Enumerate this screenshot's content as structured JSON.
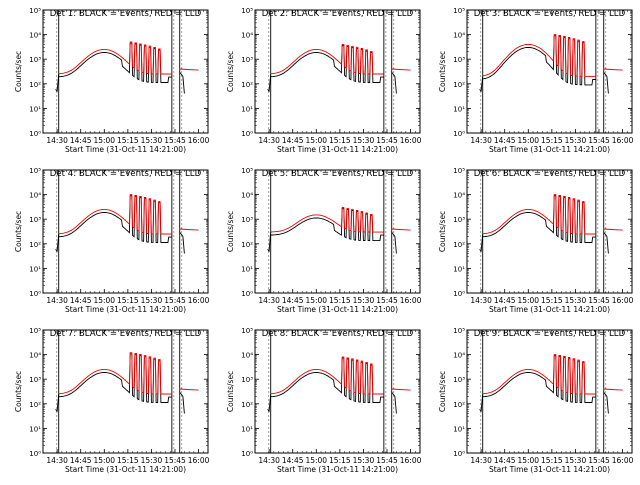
{
  "colors": {
    "events": "#000000",
    "lld": "#ff0000",
    "axes": "#000000"
  },
  "chart_data": [
    {
      "type": "line",
      "title": "Det 1: BLACK = Events, RED = LLD",
      "xlabel": "Start Time (31-Oct-11 14:21:00)",
      "ylabel": "Counts/sec",
      "x_ticks": [
        "14:30",
        "14:45",
        "15:00",
        "15:15",
        "15:30",
        "15:45",
        "16:00"
      ],
      "x_tick_minutes": [
        9,
        24,
        39,
        54,
        69,
        84,
        99
      ],
      "xlim_minutes": [
        0,
        105
      ],
      "y_scale": "log",
      "ylim": [
        1,
        100000
      ],
      "y_ticks": [
        "10⁰",
        "10¹",
        "10²",
        "10³",
        "10⁴",
        "10⁵"
      ],
      "vertical_lines_minutes": [
        10,
        82,
        87
      ],
      "legend": [
        "Events",
        "LLD"
      ]
    },
    {
      "type": "line",
      "title": "Det 2: BLACK = Events, RED = LLD",
      "xlabel": "Start Time (31-Oct-11 14:21:00)",
      "ylabel": "Counts/sec",
      "x_ticks": [
        "14:30",
        "14:45",
        "15:00",
        "15:15",
        "15:30",
        "15:45",
        "16:00"
      ],
      "x_tick_minutes": [
        9,
        24,
        39,
        54,
        69,
        84,
        99
      ],
      "xlim_minutes": [
        0,
        105
      ],
      "y_scale": "log",
      "ylim": [
        1,
        100000
      ],
      "y_ticks": [
        "10⁰",
        "10¹",
        "10²",
        "10³",
        "10⁴",
        "10⁵"
      ],
      "vertical_lines_minutes": [
        10,
        82,
        87
      ],
      "legend": [
        "Events",
        "LLD"
      ]
    },
    {
      "type": "line",
      "title": "Det 3: BLACK = Events, RED = LLD",
      "xlabel": "Start Time (31-Oct-11 14:21:00)",
      "ylabel": "Counts/sec",
      "x_ticks": [
        "14:30",
        "14:45",
        "15:00",
        "15:15",
        "15:30",
        "15:45",
        "16:00"
      ],
      "x_tick_minutes": [
        9,
        24,
        39,
        54,
        69,
        84,
        99
      ],
      "xlim_minutes": [
        0,
        105
      ],
      "y_scale": "log",
      "ylim": [
        1,
        100000
      ],
      "y_ticks": [
        "10⁰",
        "10¹",
        "10²",
        "10³",
        "10⁴",
        "10⁵"
      ],
      "vertical_lines_minutes": [
        10,
        82,
        87
      ],
      "legend": [
        "Events",
        "LLD"
      ]
    },
    {
      "type": "line",
      "title": "Det 4: BLACK = Events, RED = LLD",
      "xlabel": "Start Time (31-Oct-11 14:21:00)",
      "ylabel": "Counts/sec",
      "x_ticks": [
        "14:30",
        "14:45",
        "15:00",
        "15:15",
        "15:30",
        "15:45",
        "16:00"
      ],
      "x_tick_minutes": [
        9,
        24,
        39,
        54,
        69,
        84,
        99
      ],
      "xlim_minutes": [
        0,
        105
      ],
      "y_scale": "log",
      "ylim": [
        1,
        100000
      ],
      "y_ticks": [
        "10⁰",
        "10¹",
        "10²",
        "10³",
        "10⁴",
        "10⁵"
      ],
      "vertical_lines_minutes": [
        10,
        82,
        87
      ],
      "legend": [
        "Events",
        "LLD"
      ]
    },
    {
      "type": "line",
      "title": "Det 5: BLACK = Events, RED = LLD",
      "xlabel": "Start Time (31-Oct-11 14:21:00)",
      "ylabel": "Counts/sec",
      "x_ticks": [
        "14:30",
        "14:45",
        "15:00",
        "15:15",
        "15:30",
        "15:45",
        "16:00"
      ],
      "x_tick_minutes": [
        9,
        24,
        39,
        54,
        69,
        84,
        99
      ],
      "xlim_minutes": [
        0,
        105
      ],
      "y_scale": "log",
      "ylim": [
        1,
        100000
      ],
      "y_ticks": [
        "10⁰",
        "10¹",
        "10²",
        "10³",
        "10⁴",
        "10⁵"
      ],
      "vertical_lines_minutes": [
        10,
        82,
        87
      ],
      "legend": [
        "Events",
        "LLD"
      ]
    },
    {
      "type": "line",
      "title": "Det 6: BLACK = Events, RED = LLD",
      "xlabel": "Start Time (31-Oct-11 14:21:00)",
      "ylabel": "Counts/sec",
      "x_ticks": [
        "14:30",
        "14:45",
        "15:00",
        "15:15",
        "15:30",
        "15:45",
        "16:00"
      ],
      "x_tick_minutes": [
        9,
        24,
        39,
        54,
        69,
        84,
        99
      ],
      "xlim_minutes": [
        0,
        105
      ],
      "y_scale": "log",
      "ylim": [
        1,
        100000
      ],
      "y_ticks": [
        "10⁰",
        "10¹",
        "10²",
        "10³",
        "10⁴",
        "10⁵"
      ],
      "vertical_lines_minutes": [
        10,
        82,
        87
      ],
      "legend": [
        "Events",
        "LLD"
      ]
    },
    {
      "type": "line",
      "title": "Det 7: BLACK = Events, RED = LLD",
      "xlabel": "Start Time (31-Oct-11 14:21:00)",
      "ylabel": "Counts/sec",
      "x_ticks": [
        "14:30",
        "14:45",
        "15:00",
        "15:15",
        "15:30",
        "15:45",
        "16:00"
      ],
      "x_tick_minutes": [
        9,
        24,
        39,
        54,
        69,
        84,
        99
      ],
      "xlim_minutes": [
        0,
        105
      ],
      "y_scale": "log",
      "ylim": [
        1,
        100000
      ],
      "y_ticks": [
        "10⁰",
        "10¹",
        "10²",
        "10³",
        "10⁴",
        "10⁵"
      ],
      "vertical_lines_minutes": [
        10,
        82,
        87
      ],
      "legend": [
        "Events",
        "LLD"
      ]
    },
    {
      "type": "line",
      "title": "Det 8: BLACK = Events, RED = LLD",
      "xlabel": "Start Time (31-Oct-11 14:21:00)",
      "ylabel": "Counts/sec",
      "x_ticks": [
        "14:30",
        "14:45",
        "15:00",
        "15:15",
        "15:30",
        "15:45",
        "16:00"
      ],
      "x_tick_minutes": [
        9,
        24,
        39,
        54,
        69,
        84,
        99
      ],
      "xlim_minutes": [
        0,
        105
      ],
      "y_scale": "log",
      "ylim": [
        1,
        100000
      ],
      "y_ticks": [
        "10⁰",
        "10¹",
        "10²",
        "10³",
        "10⁴",
        "10⁵"
      ],
      "vertical_lines_minutes": [
        10,
        82,
        87
      ],
      "legend": [
        "Events",
        "LLD"
      ]
    },
    {
      "type": "line",
      "title": "Det 9: BLACK = Events, RED = LLD",
      "xlabel": "Start Time (31-Oct-11 14:21:00)",
      "ylabel": "Counts/sec",
      "x_ticks": [
        "14:30",
        "14:45",
        "15:00",
        "15:15",
        "15:30",
        "15:45",
        "16:00"
      ],
      "x_tick_minutes": [
        9,
        24,
        39,
        54,
        69,
        84,
        99
      ],
      "xlim_minutes": [
        0,
        105
      ],
      "y_scale": "log",
      "ylim": [
        1,
        100000
      ],
      "y_ticks": [
        "10⁰",
        "10¹",
        "10²",
        "10³",
        "10⁴",
        "10⁵"
      ],
      "vertical_lines_minutes": [
        10,
        82,
        87
      ],
      "legend": [
        "Events",
        "LLD"
      ]
    }
  ]
}
